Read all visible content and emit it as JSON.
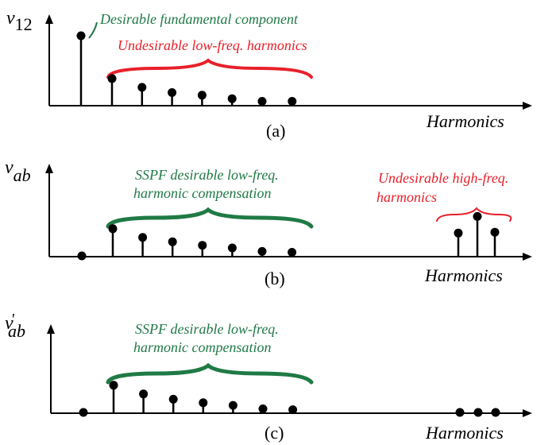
{
  "colors": {
    "green": "#1f7a45",
    "red": "#e8202a",
    "axis": "#000000"
  },
  "panels": [
    {
      "id": "a",
      "ylabel_main": "v",
      "ylabel_sub": "12",
      "caption": "(a)",
      "xlabel": "Harmonics",
      "notes": {
        "fundamental": "Desirable fundamental component",
        "low_harmonics": "Undesirable low-freq. harmonics"
      },
      "fundamental_level": 0.8,
      "low_levels": [
        0.31,
        0.21,
        0.15,
        0.12,
        0.08,
        0.05,
        0.05
      ],
      "high_levels": []
    },
    {
      "id": "b",
      "ylabel_main": "v",
      "ylabel_sub": "ab",
      "caption": "(b)",
      "xlabel": "Harmonics",
      "notes": {
        "low_line1": "SSPF desirable low-freq.",
        "low_line2": "harmonic compensation",
        "high_line1": "Undesirable high-freq.",
        "high_line2": "harmonics"
      },
      "fundamental_level": 0.0,
      "low_levels": [
        0.32,
        0.22,
        0.17,
        0.13,
        0.1,
        0.06,
        0.05
      ],
      "high_levels": [
        0.27,
        0.46,
        0.28
      ]
    },
    {
      "id": "c",
      "ylabel_main": "v",
      "ylabel_prime": "'",
      "ylabel_sub": "ab",
      "caption": "(c)",
      "xlabel": "Harmonics",
      "notes": {
        "low_line1": "SSPF desirable low-freq.",
        "low_line2": "harmonic compensation"
      },
      "fundamental_level": 0.0,
      "low_levels": [
        0.32,
        0.22,
        0.16,
        0.12,
        0.09,
        0.05,
        0.04
      ],
      "high_levels": [
        0.0,
        0.0,
        0.0
      ]
    }
  ]
}
